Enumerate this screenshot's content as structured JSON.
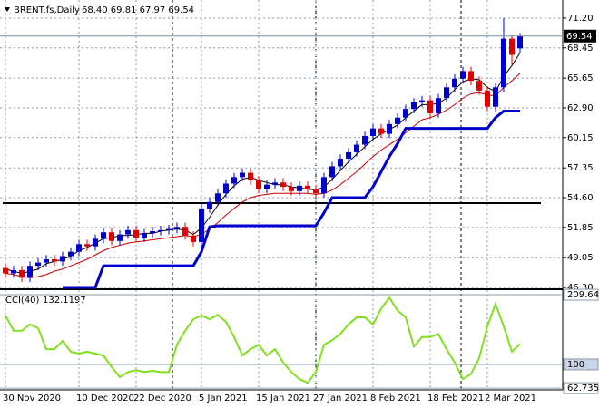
{
  "chart_data": [
    {
      "type": "candlestick",
      "title": "BRENT.fs,Daily",
      "subtitle": "68.40 69.81 67.97 69.54",
      "categories": [
        "30 Nov 2020",
        null,
        null,
        null,
        null,
        null,
        null,
        null,
        null,
        "10 Dec 2020",
        null,
        null,
        null,
        null,
        null,
        null,
        "22 Dec 2020",
        null,
        null,
        null,
        null,
        null,
        null,
        null,
        "5 Jan 2021",
        null,
        null,
        null,
        null,
        null,
        null,
        "15 Jan 2021",
        null,
        null,
        null,
        null,
        null,
        null,
        "27 Jan 2021",
        null,
        null,
        null,
        null,
        null,
        null,
        "8 Feb 2021",
        null,
        null,
        null,
        null,
        null,
        null,
        "18 Feb 2021",
        null,
        null,
        null,
        null,
        null,
        null,
        "2 Mar 2021",
        null,
        null,
        null,
        null
      ],
      "open": [
        48.1,
        47.6,
        47.9,
        47.2,
        48.3,
        48.6,
        48.9,
        48.7,
        49.2,
        49.6,
        50.3,
        50.1,
        50.8,
        51.4,
        50.6,
        51.2,
        51.6,
        50.9,
        51.3,
        51.5,
        51.6,
        51.7,
        51.9,
        51.1,
        50.5,
        53.6,
        54.2,
        55.0,
        55.9,
        56.5,
        56.9,
        56.2,
        55.4,
        55.8,
        56.0,
        55.6,
        55.2,
        55.7,
        55.4,
        55.0,
        56.5,
        57.5,
        58.2,
        58.8,
        59.5,
        60.3,
        61.0,
        60.5,
        61.4,
        62.0,
        62.8,
        63.4,
        63.6,
        62.4,
        63.8,
        64.8,
        65.6,
        66.3,
        65.4,
        64.5,
        63.0,
        64.8,
        69.3,
        68.4
      ],
      "high": [
        48.5,
        48.3,
        48.3,
        48.7,
        49.0,
        49.3,
        49.3,
        49.6,
        50.0,
        50.7,
        50.7,
        51.2,
        51.8,
        51.8,
        51.6,
        52.0,
        52.0,
        51.7,
        51.9,
        52.0,
        52.1,
        52.3,
        52.3,
        51.5,
        54.0,
        54.6,
        55.4,
        56.3,
        56.9,
        57.3,
        57.3,
        56.6,
        56.2,
        56.4,
        56.4,
        56.0,
        56.1,
        56.1,
        55.8,
        56.9,
        57.9,
        58.6,
        59.2,
        59.9,
        60.7,
        61.4,
        61.4,
        61.8,
        62.4,
        63.2,
        63.8,
        64.0,
        64.0,
        64.2,
        65.2,
        66.0,
        66.7,
        66.7,
        65.8,
        64.9,
        65.2,
        71.2,
        69.6,
        69.81
      ],
      "low": [
        47.2,
        47.2,
        46.8,
        46.8,
        47.9,
        48.2,
        48.3,
        48.3,
        48.8,
        49.2,
        49.7,
        49.7,
        50.4,
        50.2,
        50.2,
        50.8,
        50.5,
        50.5,
        50.9,
        51.1,
        51.2,
        51.3,
        50.7,
        50.1,
        50.1,
        53.2,
        53.8,
        54.6,
        55.5,
        56.1,
        55.8,
        55.0,
        55.0,
        55.4,
        55.2,
        54.8,
        54.8,
        55.0,
        54.6,
        54.6,
        56.1,
        57.1,
        57.8,
        58.4,
        59.1,
        59.9,
        60.1,
        60.1,
        61.0,
        61.6,
        62.4,
        63.0,
        62.0,
        62.0,
        63.4,
        64.4,
        65.2,
        65.0,
        64.1,
        62.6,
        62.6,
        64.4,
        66.9,
        67.97
      ],
      "close": [
        47.6,
        47.9,
        47.2,
        48.3,
        48.6,
        48.9,
        48.7,
        49.2,
        49.6,
        50.3,
        50.1,
        50.8,
        51.4,
        50.6,
        51.2,
        51.6,
        50.9,
        51.3,
        51.5,
        51.6,
        51.7,
        51.9,
        51.1,
        50.5,
        53.6,
        54.2,
        55.0,
        55.9,
        56.5,
        56.9,
        56.2,
        55.4,
        55.8,
        56.0,
        55.6,
        55.2,
        55.7,
        55.4,
        55.0,
        56.5,
        57.5,
        58.2,
        58.8,
        59.5,
        60.3,
        61.0,
        60.5,
        61.4,
        62.0,
        62.8,
        63.4,
        63.6,
        62.4,
        63.8,
        64.8,
        65.6,
        66.3,
        65.4,
        64.5,
        63.0,
        64.8,
        69.3,
        67.8,
        69.54
      ],
      "up_color": "#0000cd",
      "down_color": "#e00000",
      "series": [
        {
          "color": "#000000",
          "values": [
            48.0,
            47.8,
            47.6,
            47.8,
            48.0,
            48.5,
            48.7,
            48.9,
            49.2,
            49.7,
            50.0,
            50.4,
            50.8,
            50.9,
            51.1,
            51.1,
            51.2,
            51.3,
            51.3,
            51.5,
            51.6,
            51.7,
            51.6,
            51.2,
            51.8,
            52.8,
            53.9,
            54.9,
            55.7,
            56.3,
            56.5,
            56.2,
            56.0,
            55.8,
            55.8,
            55.6,
            55.5,
            55.4,
            55.3,
            55.6,
            56.3,
            57.1,
            57.9,
            58.6,
            59.3,
            60.0,
            60.5,
            60.9,
            61.3,
            62.0,
            62.6,
            63.2,
            63.2,
            63.3,
            63.8,
            64.6,
            65.3,
            65.6,
            65.5,
            64.8,
            64.4,
            65.8,
            66.8,
            68.0
          ]
        },
        {
          "color": "#cc0000",
          "values": [
            47.6,
            47.5,
            47.3,
            47.2,
            47.3,
            47.5,
            47.8,
            48.0,
            48.3,
            48.6,
            48.9,
            49.3,
            49.7,
            50.0,
            50.2,
            50.4,
            50.5,
            50.6,
            50.7,
            50.8,
            50.9,
            51.0,
            51.1,
            51.0,
            51.2,
            51.7,
            52.3,
            53.0,
            53.6,
            54.2,
            54.6,
            54.8,
            54.9,
            55.0,
            55.0,
            55.0,
            55.0,
            55.0,
            54.9,
            55.0,
            55.3,
            55.8,
            56.4,
            57.0,
            57.7,
            58.4,
            59.0,
            59.5,
            60.0,
            60.6,
            61.2,
            61.8,
            62.0,
            62.3,
            62.7,
            63.2,
            63.8,
            64.2,
            64.3,
            64.1,
            64.0,
            64.8,
            65.4,
            66.1
          ]
        },
        {
          "color": "#0000cc",
          "values": [
            null,
            null,
            null,
            null,
            null,
            null,
            null,
            46.3,
            46.3,
            46.3,
            46.3,
            46.3,
            48.3,
            48.3,
            48.3,
            48.3,
            48.3,
            48.3,
            48.3,
            48.3,
            48.3,
            48.3,
            48.3,
            48.3,
            49.6,
            51.9,
            52.0,
            52.0,
            52.0,
            52.0,
            52.0,
            52.0,
            52.0,
            52.0,
            52.0,
            52.0,
            52.0,
            52.0,
            52.0,
            53.2,
            54.6,
            54.6,
            54.6,
            54.6,
            54.6,
            55.6,
            57.0,
            58.4,
            59.6,
            61.0,
            61.0,
            61.0,
            61.0,
            61.0,
            61.0,
            61.0,
            61.0,
            61.0,
            61.0,
            61.0,
            62.0,
            62.6,
            62.6,
            62.6
          ]
        }
      ],
      "hline": 54.1,
      "ylim": [
        46.22,
        72.62
      ],
      "yticks": [
        {
          "value": 71.2,
          "label": "71.20"
        },
        {
          "value": 68.45,
          "label": "68.45"
        },
        {
          "value": 65.65,
          "label": "65.65"
        },
        {
          "value": 62.9,
          "label": "62.90"
        },
        {
          "value": 60.15,
          "label": "60.15"
        },
        {
          "value": 57.35,
          "label": "57.35"
        },
        {
          "value": 54.6,
          "label": "54.60"
        },
        {
          "value": 51.85,
          "label": "51.85"
        },
        {
          "value": 49.05,
          "label": "49.05"
        },
        {
          "value": 46.3,
          "label": "46.30"
        }
      ],
      "grid": true
    },
    {
      "type": "line",
      "title": "CCI(40)",
      "color": "#80e020",
      "values": [
        177,
        153,
        153,
        163,
        157,
        124,
        124,
        137,
        120,
        117,
        120,
        117,
        114,
        96,
        80,
        88,
        91,
        88,
        90,
        88,
        88,
        131,
        153,
        171,
        177,
        171,
        178,
        167,
        143,
        114,
        124,
        131,
        114,
        124,
        103,
        88,
        77,
        71,
        88,
        131,
        138,
        148,
        163,
        174,
        174,
        163,
        188,
        205,
        185,
        174,
        128,
        143,
        143,
        148,
        124,
        103,
        77,
        85,
        110,
        160,
        195,
        160,
        120,
        132.1197
      ],
      "ylim": [
        60,
        214
      ],
      "yticks": [
        209.6441,
        100,
        62.7357
      ],
      "grid": true
    }
  ]
}
